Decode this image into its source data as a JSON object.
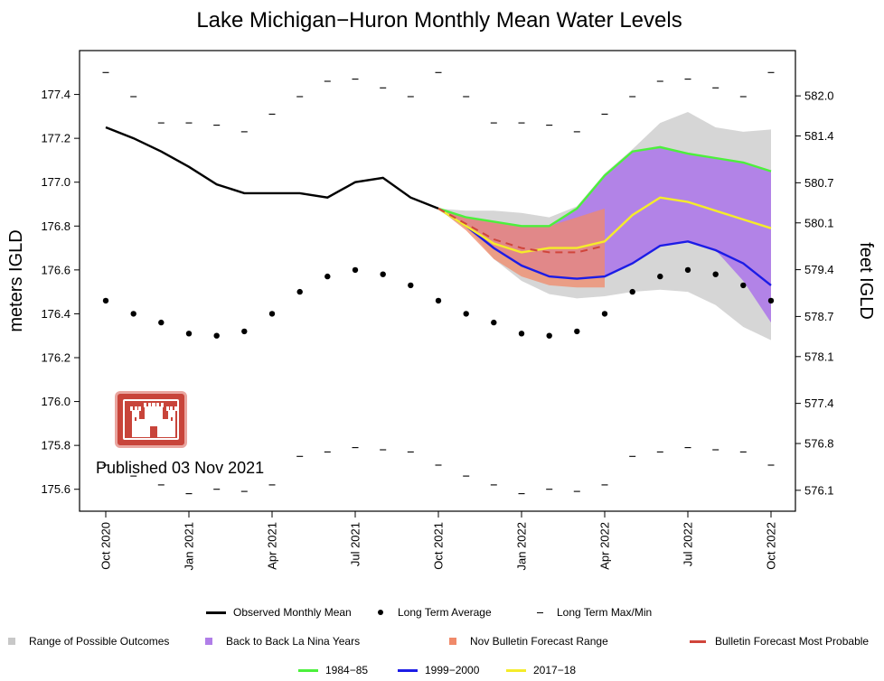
{
  "chart_data": {
    "type": "line",
    "title": "Lake Michigan−Huron Monthly Mean Water Levels",
    "ylabel_left": "meters IGLD",
    "ylabel_right": "feet IGLD",
    "ylim": [
      175.5,
      177.6
    ],
    "left_ticks": [
      "175.6",
      "175.8",
      "176.0",
      "176.2",
      "176.4",
      "176.6",
      "176.8",
      "177.0",
      "177.2",
      "177.4"
    ],
    "right_ticks": [
      "576.1",
      "576.8",
      "577.4",
      "578.1",
      "578.7",
      "579.4",
      "580.1",
      "580.7",
      "581.4",
      "582.0"
    ],
    "months": [
      "Oct 2020",
      "Nov 2020",
      "Dec 2020",
      "Jan 2021",
      "Feb 2021",
      "Mar 2021",
      "Apr 2021",
      "May 2021",
      "Jun 2021",
      "Jul 2021",
      "Aug 2021",
      "Sep 2021",
      "Oct 2021",
      "Nov 2021",
      "Dec 2021",
      "Jan 2022",
      "Feb 2022",
      "Mar 2022",
      "Apr 2022",
      "May 2022",
      "Jun 2022",
      "Jul 2022",
      "Aug 2022",
      "Sep 2022",
      "Oct 2022"
    ],
    "x_tick_labels": [
      "Oct 2020",
      "Jan 2021",
      "Apr 2021",
      "Jul 2021",
      "Oct 2021",
      "Jan 2022",
      "Apr 2022",
      "Jul 2022",
      "Oct 2022"
    ],
    "observed_monthly_mean": {
      "name": "Observed Monthly Mean",
      "x": [
        "Oct 2020",
        "Nov 2020",
        "Dec 2020",
        "Jan 2021",
        "Feb 2021",
        "Mar 2021",
        "Apr 2021",
        "May 2021",
        "Jun 2021",
        "Jul 2021",
        "Aug 2021",
        "Sep 2021",
        "Oct 2021"
      ],
      "values": [
        177.25,
        177.2,
        177.14,
        177.07,
        176.99,
        176.95,
        176.95,
        176.95,
        176.93,
        177.0,
        177.02,
        176.93,
        176.88
      ],
      "color": "#000000"
    },
    "long_term_average": {
      "name": "Long Term Average",
      "values": [
        176.46,
        176.4,
        176.36,
        176.31,
        176.3,
        176.32,
        176.4,
        176.5,
        176.57,
        176.6,
        176.58,
        176.53,
        176.46,
        176.4,
        176.36,
        176.31,
        176.3,
        176.32,
        176.4,
        176.5,
        176.57,
        176.6,
        176.58,
        176.53,
        176.46
      ]
    },
    "long_term_max": [
      177.5,
      177.39,
      177.27,
      177.27,
      177.26,
      177.23,
      177.31,
      177.39,
      177.46,
      177.47,
      177.43,
      177.39,
      177.5,
      177.39,
      177.27,
      177.27,
      177.26,
      177.23,
      177.31,
      177.39,
      177.46,
      177.47,
      177.43,
      177.39,
      177.5
    ],
    "long_term_min": [
      175.71,
      175.66,
      175.62,
      175.58,
      175.6,
      175.59,
      175.62,
      175.75,
      175.77,
      175.79,
      175.78,
      175.77,
      175.71,
      175.66,
      175.62,
      175.58,
      175.6,
      175.59,
      175.62,
      175.75,
      175.77,
      175.79,
      175.78,
      175.77,
      175.71
    ],
    "long_term_maxmin_label": "Long Term Max/Min",
    "range_of_possible_outcomes": {
      "name": "Range of Possible Outcomes",
      "x": [
        "Oct 2021",
        "Nov 2021",
        "Dec 2021",
        "Jan 2022",
        "Feb 2022",
        "Mar 2022",
        "Apr 2022",
        "May 2022",
        "Jun 2022",
        "Jul 2022",
        "Aug 2022",
        "Sep 2022",
        "Oct 2022"
      ],
      "upper": [
        176.88,
        176.87,
        176.87,
        176.86,
        176.84,
        176.89,
        177.04,
        177.15,
        177.27,
        177.32,
        177.25,
        177.23,
        177.24
      ],
      "lower": [
        176.88,
        176.8,
        176.65,
        176.55,
        176.49,
        176.47,
        176.48,
        176.5,
        176.51,
        176.5,
        176.44,
        176.34,
        176.28
      ],
      "color": "#d3d3d3"
    },
    "back_to_back_la_nina_years": {
      "name": "Back to Back La Nina Years",
      "x": [
        "Oct 2021",
        "Nov 2021",
        "Dec 2021",
        "Jan 2022",
        "Feb 2022",
        "Mar 2022",
        "Apr 2022",
        "May 2022",
        "Jun 2022",
        "Jul 2022",
        "Aug 2022",
        "Sep 2022",
        "Oct 2022"
      ],
      "upper": [
        176.88,
        176.84,
        176.82,
        176.8,
        176.8,
        176.88,
        177.03,
        177.14,
        177.16,
        177.13,
        177.11,
        177.09,
        177.05
      ],
      "lower": [
        176.88,
        176.8,
        176.7,
        176.62,
        176.57,
        176.56,
        176.57,
        176.63,
        176.71,
        176.73,
        176.69,
        176.55,
        176.36
      ],
      "color": "#b07ee8"
    },
    "nov_bulletin_forecast_range": {
      "name": "Nov Bulletin Forecast Range",
      "x": [
        "Oct 2021",
        "Nov 2021",
        "Dec 2021",
        "Jan 2022",
        "Feb 2022",
        "Mar 2022",
        "Apr 2022"
      ],
      "upper": [
        176.88,
        176.84,
        176.82,
        176.8,
        176.8,
        176.84,
        176.88
      ],
      "lower": [
        176.88,
        176.78,
        176.65,
        176.57,
        176.53,
        176.52,
        176.52
      ],
      "color": "#f08a6a"
    },
    "bulletin_forecast_most_probable": {
      "name": "Bulletin Forecast Most Probable",
      "x": [
        "Oct 2021",
        "Nov 2021",
        "Dec 2021",
        "Jan 2022",
        "Feb 2022",
        "Mar 2022",
        "Apr 2022"
      ],
      "values": [
        176.88,
        176.81,
        176.74,
        176.7,
        176.68,
        176.68,
        176.71
      ],
      "color": "#d0453b"
    },
    "series": [
      {
        "name": "1984−85",
        "color": "#4cf03c",
        "x": [
          "Oct 2021",
          "Nov 2021",
          "Dec 2021",
          "Jan 2022",
          "Feb 2022",
          "Mar 2022",
          "Apr 2022",
          "May 2022",
          "Jun 2022",
          "Jul 2022",
          "Aug 2022",
          "Sep 2022",
          "Oct 2022"
        ],
        "values": [
          176.88,
          176.84,
          176.82,
          176.8,
          176.8,
          176.88,
          177.03,
          177.14,
          177.16,
          177.13,
          177.11,
          177.09,
          177.05
        ]
      },
      {
        "name": "1999−2000",
        "color": "#1c1ce6",
        "x": [
          "Oct 2021",
          "Nov 2021",
          "Dec 2021",
          "Jan 2022",
          "Feb 2022",
          "Mar 2022",
          "Apr 2022",
          "May 2022",
          "Jun 2022",
          "Jul 2022",
          "Aug 2022",
          "Sep 2022",
          "Oct 2022"
        ],
        "values": [
          176.88,
          176.8,
          176.7,
          176.62,
          176.57,
          176.56,
          176.57,
          176.63,
          176.71,
          176.73,
          176.69,
          176.63,
          176.53
        ]
      },
      {
        "name": "2017−18",
        "color": "#f5ec2a",
        "x": [
          "Oct 2021",
          "Nov 2021",
          "Dec 2021",
          "Jan 2022",
          "Feb 2022",
          "Mar 2022",
          "Apr 2022",
          "May 2022",
          "Jun 2022",
          "Jul 2022",
          "Aug 2022",
          "Sep 2022",
          "Oct 2022"
        ],
        "values": [
          176.88,
          176.8,
          176.72,
          176.68,
          176.7,
          176.7,
          176.73,
          176.85,
          176.93,
          176.91,
          176.87,
          176.83,
          176.79
        ]
      }
    ],
    "annotation": "Published 03 Nov 2021"
  },
  "legend": {
    "observed": "Observed Monthly Mean",
    "average": "Long Term Average",
    "maxmin": "Long Term Max/Min",
    "range": "Range of Possible Outcomes",
    "lanina": "Back to Back La Nina Years",
    "bulletin_range": "Nov Bulletin Forecast Range",
    "most_probable": "Bulletin Forecast Most Probable",
    "s1": "1984−85",
    "s2": "1999−2000",
    "s3": "2017−18"
  },
  "colors": {
    "observed": "#000000",
    "range": "#c8c8c8",
    "lanina": "#b07ee8",
    "bulletin_range": "#f08a6a",
    "most_probable": "#d0453b",
    "s1": "#4cf03c",
    "s2": "#1c1ce6",
    "s3": "#f5ec2a",
    "logo": "#c8443a"
  },
  "logo_icon": "army-corps-castle-logo"
}
